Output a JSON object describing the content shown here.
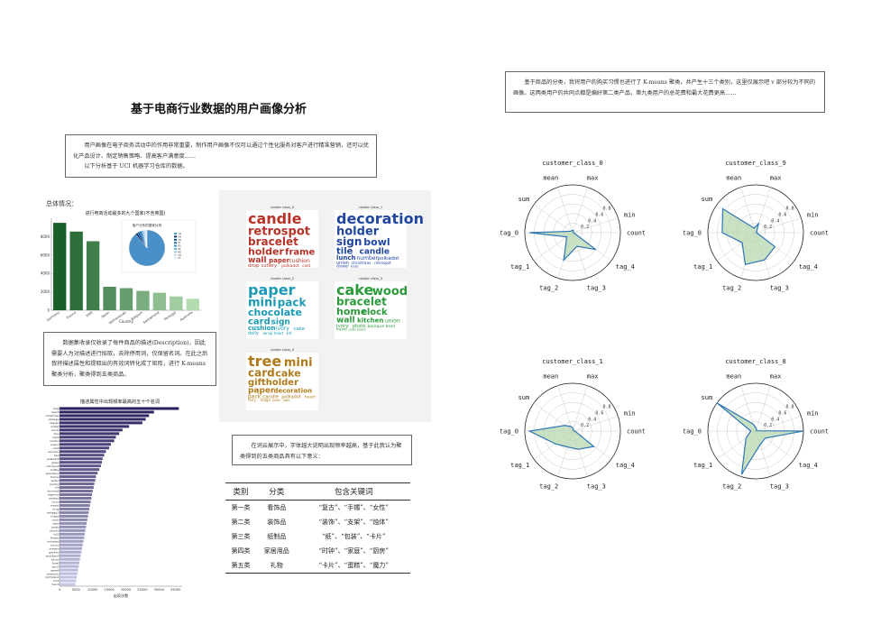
{
  "page_title": "基于电商行业数据的用户画像分析",
  "intro": [
    "用户画像在电子商务活动中的作用非常重要，制作用户画像不仅可以通过个性化服务对客户进行精准营销，还可以优化产品设计、制定销售策略、提高客户满意度……",
    "以下分析基于 UCI 机器学习仓库的数据。"
  ],
  "overview_label": "总体情况：",
  "top_right_text": "基于商品的分类，我将用户的购买习惯也进行了 K-means 聚类，共产生十三个类别，这里仅展示吧 v 部分较为不同的画像。这两类用户的共同点都是偏好第二类产品，第九类用户的总花费和最大花费更高……",
  "description_text": "数据集收录仅收录了每件商品的描述(Description)，因此需要人为对描述进行拟取，去除停用词，仅保留名词。在此之后我将描述属性和提取出的有效词转化成了矩阵，进行 K-means 聚类分析，聚类得到五类商品。",
  "wordcloud_text": "在词云展示中，字体越大说明出现频率越高，基于此我认为聚类得到的五类商品具有以下意义：",
  "bar_chart_title": "进行电商活动最多的九个国家(不含英国)",
  "bar_chart_xlabel": "Country",
  "pie_title": "客户分布的国家比例",
  "pie_legend": [
    "UK",
    "DE",
    "FR",
    "EI",
    "ES",
    "NL",
    "BE",
    "CH",
    "PT"
  ],
  "hbar_title": "描述属性中出现频率最高的五十个名词",
  "hbar_xlabel": "出现次数",
  "hbar_words": [
    "bag",
    "heart",
    "christmas",
    "vintage",
    "design",
    "metal",
    "lunch",
    "box",
    "light",
    "holder",
    "paper",
    "card",
    "wooden",
    "tea",
    "polkadot",
    "glass",
    "retrospot",
    "bottle",
    "spaceboy",
    "frame",
    "water",
    "pantry",
    "kit",
    "doormat",
    "regency",
    "paisley",
    "ivory",
    "cream",
    "mug",
    "vintage2",
    "t-light",
    "clock",
    "cake",
    "party",
    "sticker",
    "kit2",
    "flower",
    "birthday",
    "colour",
    "drawer",
    "garden",
    "woodland",
    "silver",
    "bowl",
    "box2",
    "sweet",
    "notebook",
    "birthday2",
    "bird",
    "hand"
  ],
  "cluster_names": [
    "cluster class_0",
    "cluster class_1",
    "cluster class_2",
    "cluster class_3",
    "cluster class_4"
  ],
  "wc0_words": [
    "candle",
    "retrospot",
    "bracelet",
    "holder",
    "frame",
    "wall",
    "paper",
    "cushion",
    "drop",
    "cutlery",
    "polkadot",
    "card",
    "cake",
    "sign"
  ],
  "wc1_words": [
    "decoration",
    "holder",
    "sign",
    "bowl",
    "tile",
    "candle",
    "lunch",
    "number",
    "polkadot",
    "union",
    "christmas",
    "retrospot",
    "drawer",
    "knob"
  ],
  "wc2_words": [
    "paper",
    "mini",
    "pack",
    "chocolate",
    "card",
    "sign",
    "cushion",
    "ivory",
    "cake",
    "doily",
    "wrap",
    "heart",
    "set"
  ],
  "wc3_words": [
    "cake",
    "wood",
    "bracelet",
    "home",
    "clock",
    "wall",
    "kitchen",
    "union",
    "ivory",
    "photo",
    "baroque",
    "bead",
    "frame",
    "cake stand"
  ],
  "wc4_words": [
    "tree",
    "mini",
    "card",
    "cake",
    "giftholder",
    "paper",
    "decoration",
    "pack",
    "candle",
    "polkadot",
    "heart",
    "fairy",
    "magic",
    "jewel",
    "light"
  ],
  "table": {
    "headers": [
      "类别",
      "分类",
      "包含关键词"
    ],
    "rows": [
      [
        "第一类",
        "看饰品",
        "“复古”、“手镯”、“女性”"
      ],
      [
        "第二类",
        "装饰品",
        "“装饰”、“支架”、“烛体”"
      ],
      [
        "第三类",
        "纸制品",
        "“纸”、“包装”、“卡片”"
      ],
      [
        "第四类",
        "家居用品",
        "“时钟”、“家庭”、“厨房”"
      ],
      [
        "第五类",
        "礼物",
        "“卡片”、“蛋糕”、“魔力”"
      ]
    ]
  },
  "radar_axes": [
    "max",
    "min",
    "count",
    "tag_4",
    "tag_3",
    "tag_2",
    "tag_1",
    "tag_0",
    "sum",
    "mean"
  ],
  "radar_ticks": [
    "0.2",
    "0.4",
    "0.6",
    "0.8"
  ],
  "radar_ticks_b": [
    "0.2",
    "0.4",
    "0.6",
    "0.8",
    "1.0"
  ],
  "radar_ticks_c": [
    "0.0",
    "0.2",
    "0.4",
    "0.6",
    "0.8",
    "1.0"
  ],
  "colors": {
    "bar_dark": "#1a5e2a",
    "bar_light": "#b4dcb0",
    "hbar_dark": "#2a1f5e",
    "hbar_light": "#c7c9e6",
    "radar_line": "#2e75b6",
    "radar_fill": "#b8d8b0",
    "wc_red": "#b83228",
    "wc_blue": "#2046a0",
    "wc_cyan": "#1a9ab5",
    "wc_green": "#2a9a3a",
    "wc_brown": "#b07a1a"
  },
  "chart_data": [
    {
      "type": "bar",
      "title": "进行电商活动最多的九个国家(不含英国)",
      "xlabel": "Country",
      "ylabel": "",
      "categories": [
        "Germany",
        "France",
        "EIRE",
        "Spain",
        "Netherlands",
        "Belgium",
        "Switzerland",
        "Portugal",
        "Australia"
      ],
      "values": [
        9500,
        8550,
        7500,
        2550,
        2400,
        2100,
        1900,
        1500,
        1250
      ],
      "ylim": [
        0,
        10000
      ],
      "yticks": [
        "0",
        "2000",
        "4000",
        "6000",
        "8000"
      ]
    },
    {
      "type": "pie",
      "title": "客户分布的国家比例",
      "categories": [
        "UK",
        "DE",
        "FR",
        "EI",
        "ES",
        "NL",
        "BE",
        "CH",
        "PT"
      ],
      "values": [
        89,
        2,
        2,
        2,
        1,
        1,
        1,
        1,
        1
      ]
    },
    {
      "type": "bar",
      "orientation": "horizontal",
      "title": "描述属性中出现频率最高的五十个名词",
      "xlabel": "出现次数",
      "xticks": [
        "0",
        "5000",
        "10000",
        "15000",
        "20000",
        "25000",
        "30000",
        "35000"
      ],
      "xlim": [
        0,
        37000
      ],
      "values": [
        36000,
        28500,
        27000,
        26000,
        25000,
        21000,
        19000,
        18000,
        17000,
        16500,
        15500,
        15000,
        14000,
        13500,
        13000,
        12800,
        12500,
        12000,
        11500,
        11000,
        10800,
        10500,
        10300,
        10000,
        9800,
        9600,
        9400,
        9200,
        9000,
        8800,
        8600,
        8400,
        8200,
        8000,
        7800,
        7600,
        7400,
        7200,
        7000,
        6800,
        6600,
        6400,
        6200,
        6000,
        5800,
        5600,
        5400,
        5200,
        5000,
        4800
      ]
    },
    {
      "type": "radar",
      "title": "customer_class_0",
      "axes": [
        "max",
        "min",
        "count",
        "tag_4",
        "tag_3",
        "tag_2",
        "tag_1",
        "tag_0",
        "sum",
        "mean"
      ],
      "values": [
        0.05,
        0.02,
        0.02,
        0.6,
        0.3,
        0.6,
        0.15,
        0.9,
        0.05,
        0.05
      ]
    },
    {
      "type": "radar",
      "title": "customer_class_9",
      "axes": [
        "max",
        "min",
        "count",
        "tag_4",
        "tag_3",
        "tag_2",
        "tag_1",
        "tag_0",
        "sum",
        "mean"
      ],
      "values": [
        0.2,
        0.02,
        0.02,
        0.5,
        0.6,
        0.7,
        0.35,
        0.7,
        0.85,
        0.1
      ]
    },
    {
      "type": "radar",
      "title": "customer_class_1",
      "axes": [
        "max",
        "min",
        "count",
        "tag_4",
        "tag_3",
        "tag_2",
        "tag_1",
        "tag_0",
        "sum",
        "mean"
      ],
      "values": [
        0.05,
        0.02,
        0.05,
        0.55,
        0.4,
        0.35,
        0.45,
        0.9,
        0.2,
        0.1
      ]
    },
    {
      "type": "radar",
      "title": "customer_class_8",
      "axes": [
        "max",
        "min",
        "count",
        "tag_4",
        "tag_3",
        "tag_2",
        "tag_1",
        "tag_0",
        "sum",
        "mean"
      ],
      "values": [
        0.05,
        0.02,
        1.0,
        0.25,
        0.3,
        0.95,
        0.25,
        0.1,
        1.0,
        0.15
      ]
    }
  ]
}
